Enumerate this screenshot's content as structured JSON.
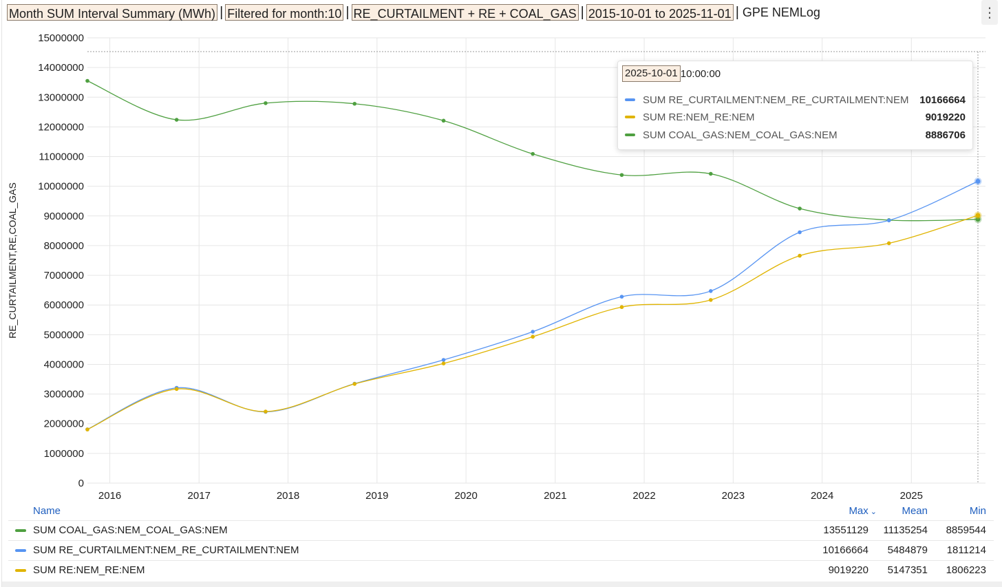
{
  "header": {
    "chips": [
      "Month SUM Interval Summary (MWh)",
      "Filtered for month:10",
      "RE_CURTAILMENT + RE + COAL_GAS",
      "2015-10-01 to 2025-11-01"
    ],
    "separator": "|",
    "source": "GPE NEMLog",
    "menu_icon": "⋮"
  },
  "tooltip": {
    "time_chip": "2025-10-01",
    "time_rest": "10:00:00",
    "rows": [
      {
        "name": "SUM RE_CURTAILMENT:NEM_RE_CURTAILMENT:NEM",
        "value": "10166664",
        "color": "#5794f2"
      },
      {
        "name": "SUM RE:NEM_RE:NEM",
        "value": "9019220",
        "color": "#e0b400"
      },
      {
        "name": "SUM COAL_GAS:NEM_COAL_GAS:NEM",
        "value": "8886706",
        "color": "#4fa041"
      }
    ]
  },
  "legend": {
    "headers": {
      "name": "Name",
      "max": "Max",
      "mean": "Mean",
      "min": "Min"
    },
    "sort_icon": "⌄",
    "rows": [
      {
        "name": "SUM COAL_GAS:NEM_COAL_GAS:NEM",
        "max": "13551129",
        "mean": "11135254",
        "min": "8859544",
        "color": "#4fa041"
      },
      {
        "name": "SUM RE_CURTAILMENT:NEM_RE_CURTAILMENT:NEM",
        "max": "10166664",
        "mean": "5484879",
        "min": "1811214",
        "color": "#5794f2"
      },
      {
        "name": "SUM RE:NEM_RE:NEM",
        "max": "9019220",
        "mean": "5147351",
        "min": "1806223",
        "color": "#e0b400"
      }
    ]
  },
  "chart_data": {
    "type": "line",
    "ylabel": "RE_CURTAILMENT,RE,COAL_GAS",
    "xlabel": "",
    "ylim": [
      0,
      15000000
    ],
    "yticks": [
      "0",
      "1000000",
      "2000000",
      "3000000",
      "4000000",
      "5000000",
      "6000000",
      "7000000",
      "8000000",
      "9000000",
      "10000000",
      "11000000",
      "12000000",
      "13000000",
      "14000000",
      "15000000"
    ],
    "xticks": [
      "2016",
      "2017",
      "2018",
      "2019",
      "2020",
      "2021",
      "2022",
      "2023",
      "2024",
      "2025"
    ],
    "xlim": [
      "2015-10-01",
      "2025-11-01"
    ],
    "x": [
      "2015-10-01",
      "2016-10-01",
      "2017-10-01",
      "2018-10-01",
      "2019-10-01",
      "2020-10-01",
      "2021-10-01",
      "2022-10-01",
      "2023-10-01",
      "2024-10-01",
      "2025-10-01"
    ],
    "grid": true,
    "legend": "bottom",
    "series": [
      {
        "name": "SUM COAL_GAS:NEM_COAL_GAS:NEM",
        "color": "#4fa041",
        "values": [
          13551129,
          12240000,
          12800000,
          12780000,
          12210000,
          11090000,
          10380000,
          10420000,
          9250000,
          8859544,
          8886706
        ]
      },
      {
        "name": "SUM RE_CURTAILMENT:NEM_RE_CURTAILMENT:NEM",
        "color": "#5794f2",
        "values": [
          1811214,
          3210000,
          2400000,
          3350000,
          4150000,
          5100000,
          6280000,
          6470000,
          8450000,
          8850000,
          10166664
        ]
      },
      {
        "name": "SUM RE:NEM_RE:NEM",
        "color": "#e0b400",
        "values": [
          1806223,
          3170000,
          2410000,
          3340000,
          4030000,
          4930000,
          5930000,
          6170000,
          7660000,
          8080000,
          9019220
        ]
      }
    ]
  }
}
